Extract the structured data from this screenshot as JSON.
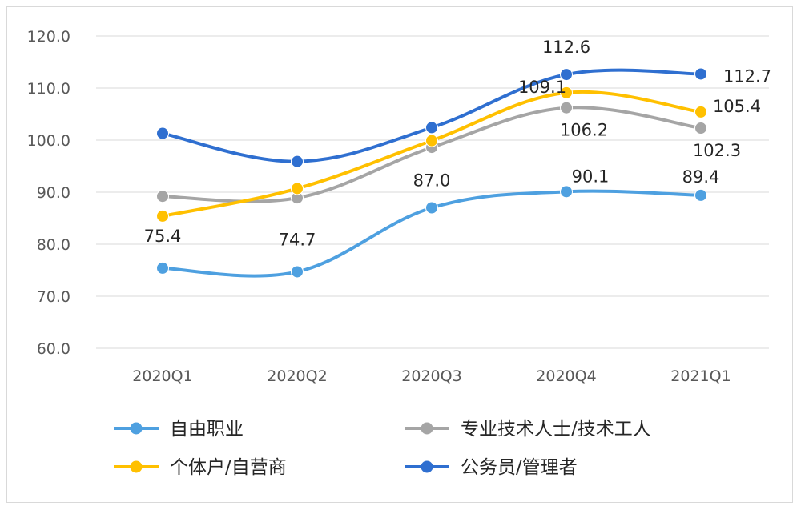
{
  "chart_data": {
    "type": "line",
    "title": "",
    "xlabel": "",
    "ylabel": "",
    "categories": [
      "2020Q1",
      "2020Q2",
      "2020Q3",
      "2020Q4",
      "2021Q1"
    ],
    "y_ticks": [
      "60.0",
      "70.0",
      "80.0",
      "90.0",
      "100.0",
      "110.0",
      "120.0"
    ],
    "ylim": [
      60,
      120
    ],
    "grid": true,
    "legend_position": "bottom",
    "series": [
      {
        "name": "自由职业",
        "color": "#4ea0e0",
        "values": [
          75.4,
          74.7,
          87.0,
          90.1,
          89.4
        ],
        "labels": [
          "75.4",
          "74.7",
          "87.0",
          "90.1",
          "89.4"
        ]
      },
      {
        "name": "专业技术人士/技术工人",
        "color": "#a5a5a5",
        "values": [
          89.2,
          88.9,
          98.6,
          106.2,
          102.3
        ],
        "labels": [
          "",
          "",
          "",
          "106.2",
          "102.3"
        ]
      },
      {
        "name": "个体户/自营商",
        "color": "#ffc000",
        "values": [
          85.4,
          90.7,
          99.9,
          109.1,
          105.4
        ],
        "labels": [
          "",
          "",
          "",
          "109.1",
          "105.4"
        ]
      },
      {
        "name": "公务员/管理者",
        "color": "#2f6fd0",
        "values": [
          101.3,
          95.9,
          102.4,
          112.6,
          112.7
        ],
        "labels": [
          "",
          "",
          "",
          "112.6",
          "112.7"
        ]
      }
    ]
  }
}
